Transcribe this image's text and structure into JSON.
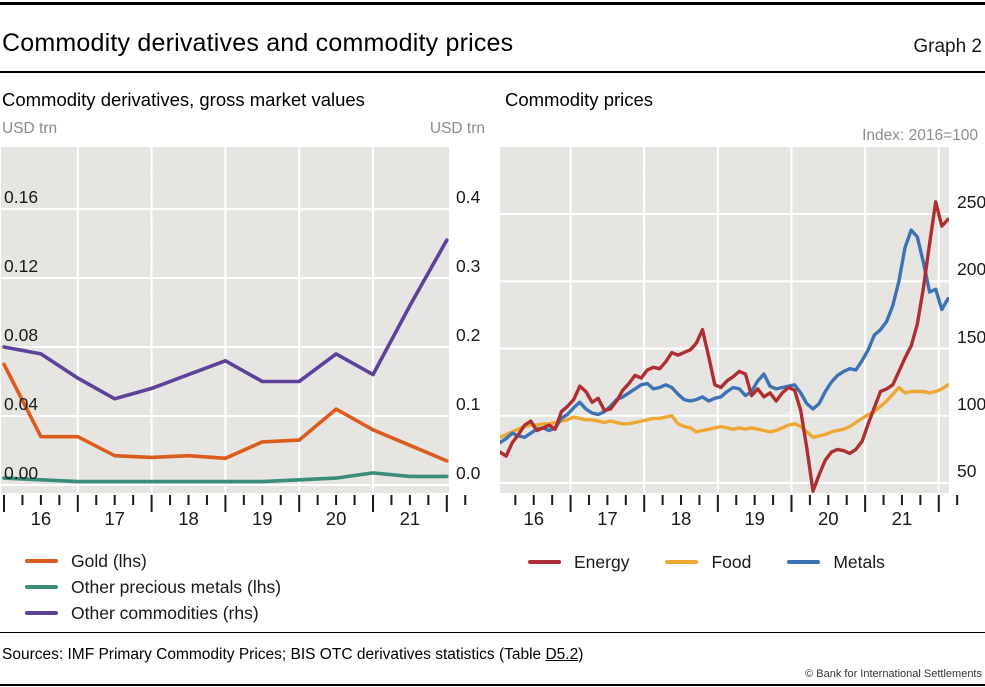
{
  "header": {
    "title": "Commodity derivatives and commodity prices",
    "graph_label": "Graph 2"
  },
  "panels": [
    {
      "subtitle": "Commodity derivatives, gross market values"
    },
    {
      "subtitle": "Commodity prices"
    }
  ],
  "footer": {
    "sources_prefix": "Sources: IMF Primary Commodity Prices; BIS OTC derivatives statistics (Table ",
    "sources_link": "D5.2",
    "sources_suffix": ")",
    "copyright": "© Bank for International Settlements"
  },
  "chart_data": [
    {
      "type": "line",
      "panel": "left",
      "title": "Commodity derivatives, gross market values",
      "x_unit": "semiannual",
      "x": [
        2016,
        2016.5,
        2017,
        2017.5,
        2018,
        2018.5,
        2019,
        2019.5,
        2020,
        2020.5,
        2021,
        2021.5,
        2022
      ],
      "x_tick_labels": [
        "16",
        "17",
        "18",
        "19",
        "20",
        "21"
      ],
      "axis_left": {
        "unit": "USD trn",
        "tick_values": [
          0,
          0.04,
          0.08,
          0.12,
          0.16
        ],
        "tick_labels": [
          "0.00",
          "0.04",
          "0.08",
          "0.12",
          "0.16"
        ],
        "range": [
          0,
          0.196
        ]
      },
      "axis_right": {
        "unit": "USD trn",
        "tick_values": [
          0,
          0.1,
          0.2,
          0.3,
          0.4
        ],
        "tick_labels": [
          "0.0",
          "0.1",
          "0.2",
          "0.3",
          "0.4"
        ],
        "range": [
          0,
          0.49
        ]
      },
      "grid": true,
      "legend_position": "below-left",
      "series": [
        {
          "name": "Gold (lhs)",
          "axis": "left",
          "color": "#dc5c1e",
          "values": [
            0.07,
            0.028,
            0.028,
            0.017,
            0.016,
            0.017,
            0.0155,
            0.025,
            0.026,
            0.044,
            0.032,
            0.023,
            0.014
          ]
        },
        {
          "name": "Other precious metals (lhs)",
          "axis": "left",
          "color": "#3a8d7a",
          "values": [
            0.004,
            0.003,
            0.002,
            0.002,
            0.002,
            0.002,
            0.002,
            0.002,
            0.003,
            0.004,
            0.007,
            0.005,
            0.005
          ]
        },
        {
          "name": "Other commodities (rhs)",
          "axis": "right",
          "color": "#5e4199",
          "values": [
            0.2,
            0.19,
            0.155,
            0.125,
            0.14,
            0.16,
            0.18,
            0.15,
            0.15,
            0.19,
            0.16,
            0.26,
            0.355
          ]
        }
      ]
    },
    {
      "type": "line",
      "panel": "right",
      "title": "Commodity prices",
      "x_unit": "monthly",
      "x_first": 2016.042,
      "x_step": 0.08333,
      "x_start_label": "2016-01",
      "x_end_label": "2022-02",
      "x_tick_labels": [
        "16",
        "17",
        "18",
        "19",
        "20",
        "21"
      ],
      "axis_right": {
        "unit": "Index: 2016=100",
        "tick_values": [
          50,
          100,
          150,
          200,
          250
        ],
        "tick_labels": [
          "50",
          "100",
          "150",
          "200",
          "250"
        ],
        "range": [
          38,
          300
        ]
      },
      "grid": true,
      "legend_position": "below-center",
      "series": [
        {
          "name": "Energy",
          "axis": "right",
          "color": "#ae2e33",
          "values": [
            73,
            70,
            80,
            86,
            93,
            96,
            89,
            91,
            93,
            90,
            103,
            107,
            112,
            122,
            118,
            110,
            113,
            104,
            105,
            111,
            119,
            124,
            130,
            128,
            134,
            136,
            135,
            140,
            147,
            145,
            147,
            149,
            154,
            164,
            144,
            123,
            121,
            126,
            129,
            133,
            131,
            115,
            120,
            114,
            117,
            111,
            117,
            121,
            119,
            104,
            76,
            44,
            56,
            67,
            73,
            75,
            74,
            72,
            75,
            81,
            94,
            106,
            118,
            120,
            123,
            133,
            143,
            152,
            168,
            195,
            228,
            259,
            241,
            246
          ]
        },
        {
          "name": "Food",
          "axis": "right",
          "color": "#efa733",
          "values": [
            84,
            86,
            88,
            90,
            92,
            93,
            93,
            94,
            94,
            95,
            96,
            97,
            99,
            98,
            97,
            97,
            96,
            95,
            96,
            95,
            94,
            94,
            95,
            96,
            97,
            98,
            98,
            99,
            100,
            94,
            92,
            91,
            88,
            89,
            90,
            91,
            92,
            91,
            90,
            91,
            90,
            91,
            90,
            89,
            88,
            89,
            91,
            93,
            94,
            92,
            88,
            84,
            85,
            86,
            88,
            89,
            90,
            92,
            95,
            98,
            101,
            103,
            107,
            111,
            116,
            121,
            117,
            118,
            118,
            118,
            117,
            118,
            120,
            123
          ]
        },
        {
          "name": "Metals",
          "axis": "right",
          "color": "#3d72b4",
          "values": [
            80,
            83,
            87,
            85,
            84,
            87,
            90,
            91,
            89,
            91,
            98,
            101,
            106,
            110,
            105,
            102,
            101,
            103,
            107,
            112,
            114,
            117,
            120,
            123,
            124,
            120,
            121,
            123,
            121,
            116,
            112,
            111,
            112,
            114,
            111,
            113,
            114,
            118,
            121,
            120,
            115,
            118,
            126,
            131,
            122,
            120,
            121,
            122,
            123,
            117,
            109,
            105,
            109,
            118,
            125,
            130,
            133,
            135,
            134,
            141,
            149,
            160,
            164,
            170,
            182,
            200,
            225,
            238,
            233,
            214,
            192,
            194,
            179,
            187
          ]
        }
      ]
    }
  ]
}
